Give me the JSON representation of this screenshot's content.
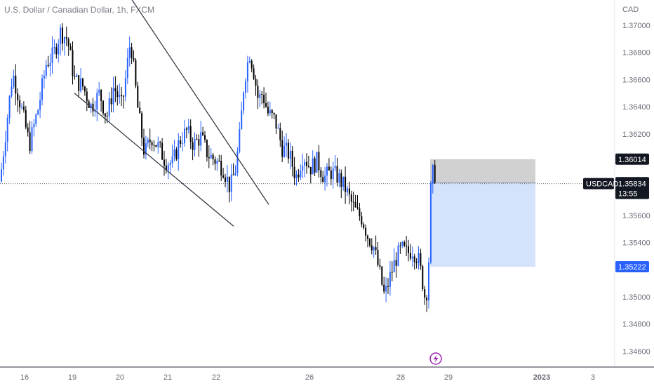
{
  "header": {
    "symbol_title": "U.S. Dollar / Canadian Dollar, 1h, FXCM",
    "currency": "CAD"
  },
  "chart_data": {
    "type": "candlestick",
    "symbol": "USDCAD",
    "interval": "1h",
    "xlabel": "",
    "ylabel": "",
    "ylim": [
      1.3455,
      1.372
    ],
    "y_ticks": [
      "1.37000",
      "1.36800",
      "1.36600",
      "1.36400",
      "1.36200",
      "1.35600",
      "1.35400",
      "1.35000",
      "1.34800",
      "1.34600"
    ],
    "x_ticks": [
      "16",
      "19",
      "20",
      "21",
      "22",
      "26",
      "28",
      "29",
      "2023",
      "3"
    ],
    "grid": false,
    "price_path": [
      [
        0,
        1.3585
      ],
      [
        10,
        1.363
      ],
      [
        18,
        1.3665
      ],
      [
        30,
        1.364
      ],
      [
        42,
        1.3612
      ],
      [
        55,
        1.364
      ],
      [
        66,
        1.3672
      ],
      [
        76,
        1.3678
      ],
      [
        86,
        1.3695
      ],
      [
        96,
        1.369
      ],
      [
        106,
        1.366
      ],
      [
        118,
        1.3655
      ],
      [
        130,
        1.364
      ],
      [
        142,
        1.365
      ],
      [
        152,
        1.3632
      ],
      [
        162,
        1.3655
      ],
      [
        174,
        1.364
      ],
      [
        186,
        1.369
      ],
      [
        196,
        1.364
      ],
      [
        206,
        1.3605
      ],
      [
        216,
        1.3618
      ],
      [
        226,
        1.361
      ],
      [
        236,
        1.36
      ],
      [
        246,
        1.3598
      ],
      [
        256,
        1.3615
      ],
      [
        266,
        1.3622
      ],
      [
        276,
        1.3612
      ],
      [
        286,
        1.3618
      ],
      [
        296,
        1.3605
      ],
      [
        308,
        1.36
      ],
      [
        318,
        1.3595
      ],
      [
        328,
        1.358
      ],
      [
        336,
        1.3595
      ],
      [
        342,
        1.362
      ],
      [
        348,
        1.366
      ],
      [
        356,
        1.368
      ],
      [
        362,
        1.3665
      ],
      [
        368,
        1.3645
      ],
      [
        374,
        1.365
      ],
      [
        382,
        1.3635
      ],
      [
        392,
        1.363
      ],
      [
        402,
        1.361
      ],
      [
        412,
        1.3605
      ],
      [
        422,
        1.3588
      ],
      [
        432,
        1.3605
      ],
      [
        442,
        1.3595
      ],
      [
        452,
        1.36
      ],
      [
        462,
        1.3588
      ],
      [
        472,
        1.3592
      ],
      [
        482,
        1.3588
      ],
      [
        492,
        1.358
      ],
      [
        500,
        1.357
      ],
      [
        508,
        1.3562
      ],
      [
        516,
        1.3558
      ],
      [
        524,
        1.3545
      ],
      [
        532,
        1.3538
      ],
      [
        540,
        1.352
      ],
      [
        548,
        1.35
      ],
      [
        556,
        1.3515
      ],
      [
        564,
        1.3528
      ],
      [
        572,
        1.3535
      ],
      [
        580,
        1.3532
      ],
      [
        588,
        1.3535
      ],
      [
        596,
        1.3528
      ],
      [
        602,
        1.3512
      ],
      [
        606,
        1.3498
      ],
      [
        610,
        1.351
      ],
      [
        614,
        1.358
      ],
      [
        618,
        1.3595
      ],
      [
        622,
        1.3584
      ]
    ],
    "trendlines": [
      {
        "from": [
          180,
          1.3725
        ],
        "to": [
          383,
          1.3568
        ]
      },
      {
        "from": [
          106,
          1.365
        ],
        "to": [
          333,
          1.3552
        ]
      }
    ],
    "position_tool": {
      "top_price": 1.36014,
      "entry_price": 1.35841,
      "bottom_price": 1.35222,
      "current_price": 1.35834,
      "countdown": "13:55",
      "loss_color": "#c9c9c9",
      "profit_color": "#d4e2fb"
    },
    "price_labels": {
      "top": "1.36014",
      "entry": "1.35841",
      "current": "1.35834",
      "countdown": "13:55",
      "bottom": "1.35222",
      "symbol": "USDCAD"
    },
    "colors": {
      "up": "#2962ff",
      "down": "#000000",
      "trendline": "#363a45",
      "axis_text": "#6a6d78",
      "current_line": "#6a6d78"
    }
  },
  "icons": {
    "event_marker": "lightning-icon"
  }
}
